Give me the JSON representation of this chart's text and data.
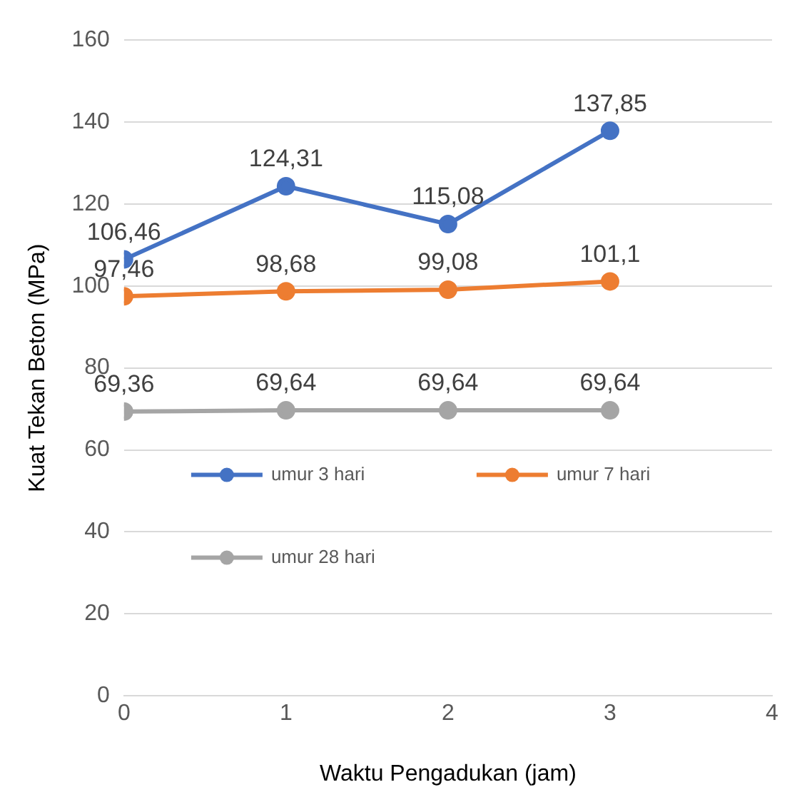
{
  "chart_data": {
    "type": "line",
    "xlabel": "Waktu Pengadukan (jam)",
    "ylabel": "Kuat Tekan Beton (MPa)",
    "x": [
      0,
      1,
      2,
      3
    ],
    "xlim": [
      0,
      4
    ],
    "xticks": [
      0,
      1,
      2,
      3,
      4
    ],
    "ylim": [
      0,
      160
    ],
    "yticks": [
      0,
      20,
      40,
      60,
      80,
      100,
      120,
      140,
      160
    ],
    "grid": "y",
    "legend": "center",
    "marker": "circle",
    "line_style": "solid",
    "series": [
      {
        "name": "umur 3 hari",
        "color": "#4472c4",
        "values": [
          106.46,
          124.31,
          115.08,
          137.85
        ],
        "value_labels": [
          "106,46",
          "124,31",
          "115,08",
          "137,85"
        ]
      },
      {
        "name": "umur 7 hari",
        "color": "#ed7d31",
        "values": [
          97.46,
          98.68,
          99.08,
          101.1
        ],
        "value_labels": [
          "97,46",
          "98,68",
          "99,08",
          "101,1"
        ]
      },
      {
        "name": "umur 28 hari",
        "color": "#a5a5a5",
        "values": [
          69.36,
          69.64,
          69.64,
          69.64
        ],
        "value_labels": [
          "69,36",
          "69,64",
          "69,64",
          "69,64"
        ]
      }
    ]
  }
}
